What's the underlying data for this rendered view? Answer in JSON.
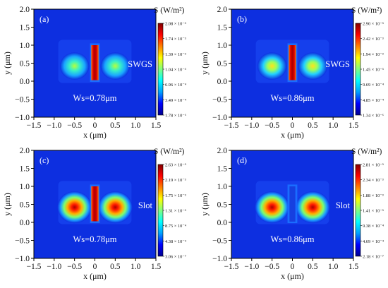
{
  "chart_data": [
    {
      "type": "heatmap",
      "panel_label": "(a)",
      "xlabel": "x (μm)",
      "ylabel": "y (μm)",
      "xlim": [
        -1.5,
        1.5
      ],
      "ylim": [
        -1.0,
        2.0
      ],
      "x_ticks": [
        "−1.5",
        "−1.0",
        "−0.5",
        "0",
        "0.5",
        "1.0",
        "1.5"
      ],
      "y_ticks": [
        "−1.0",
        "−0.5",
        "0.0",
        "0.5",
        "1.0",
        "1.5",
        "2.0"
      ],
      "structure_label": "SWGS",
      "width_annotation": "Ws=0.78μm",
      "colorbar_title": "S (W/m²)",
      "colorbar_ticks": [
        "2.08 × 10⁻³",
        "1.74 × 10⁻³",
        "1.39 × 10⁻³",
        "1.04 × 10⁻³",
        "6.96 × 10⁻⁴",
        "3.49 × 10⁻⁴",
        "1.78 × 10⁻⁶"
      ],
      "grid": false
    },
    {
      "type": "heatmap",
      "panel_label": "(b)",
      "xlabel": "x (μm)",
      "ylabel": "y (μm)",
      "xlim": [
        -1.5,
        1.5
      ],
      "ylim": [
        -1.0,
        2.0
      ],
      "x_ticks": [
        "−1.5",
        "−1.0",
        "−0.5",
        "0",
        "0.5",
        "1.0",
        "1.5"
      ],
      "y_ticks": [
        "−1.0",
        "−0.5",
        "0.0",
        "0.5",
        "1.0",
        "1.5",
        "2.0"
      ],
      "structure_label": "SWGS",
      "width_annotation": "Ws=0.86μm",
      "colorbar_title": "S (W/m²)",
      "colorbar_ticks": [
        "2.90 × 10⁻³",
        "2.42 × 10⁻³",
        "1.94 × 10⁻³",
        "1.45 × 10⁻³",
        "9.69 × 10⁻⁴",
        "4.85 × 10⁻⁴",
        "1.34 × 10⁻⁶"
      ],
      "grid": false
    },
    {
      "type": "heatmap",
      "panel_label": "(c)",
      "xlabel": "x (μm)",
      "ylabel": "y (μm)",
      "xlim": [
        -1.5,
        1.5
      ],
      "ylim": [
        -1.0,
        2.0
      ],
      "x_ticks": [
        "−1.5",
        "−1.0",
        "−0.5",
        "0",
        "0.5",
        "1.0",
        "1.5"
      ],
      "y_ticks": [
        "−1.0",
        "−0.5",
        "0.0",
        "0.5",
        "1.0",
        "1.5",
        "2.0"
      ],
      "structure_label": "Slot",
      "width_annotation": "Ws=0.78μm",
      "colorbar_title": "S (W/m²)",
      "colorbar_ticks": [
        "2.63 × 10⁻³",
        "2.19 × 10⁻³",
        "1.75 × 10⁻³",
        "1.31 × 10⁻³",
        "8.75 × 10⁻⁴",
        "4.38 × 10⁻⁴",
        "3.06 × 10⁻⁷"
      ],
      "grid": false
    },
    {
      "type": "heatmap",
      "panel_label": "(d)",
      "xlabel": "x (μm)",
      "ylabel": "y (μm)",
      "xlim": [
        -1.5,
        1.5
      ],
      "ylim": [
        -1.0,
        2.0
      ],
      "x_ticks": [
        "−1.5",
        "−1.0",
        "−0.5",
        "0",
        "0.5",
        "1.0",
        "1.5"
      ],
      "y_ticks": [
        "−1.0",
        "−0.5",
        "0.0",
        "0.5",
        "1.0",
        "1.5",
        "2.0"
      ],
      "structure_label": "Slot",
      "width_annotation": "Ws=0.86μm",
      "colorbar_title": "S (W/m²)",
      "colorbar_ticks": [
        "2.81 × 10⁻³",
        "2.34 × 10⁻³",
        "1.88 × 10⁻³",
        "1.41 × 10⁻³",
        "9.38 × 10⁻⁴",
        "4.69 × 10⁻⁴",
        "2.18 × 10⁻⁷"
      ],
      "grid": false
    }
  ],
  "colors": {
    "background_field": "#0d2fe0",
    "colormap": [
      "#00008f",
      "#0000ff",
      "#00a0ff",
      "#00ffff",
      "#80ff80",
      "#ffff00",
      "#ff8000",
      "#ff0000",
      "#800000"
    ]
  }
}
